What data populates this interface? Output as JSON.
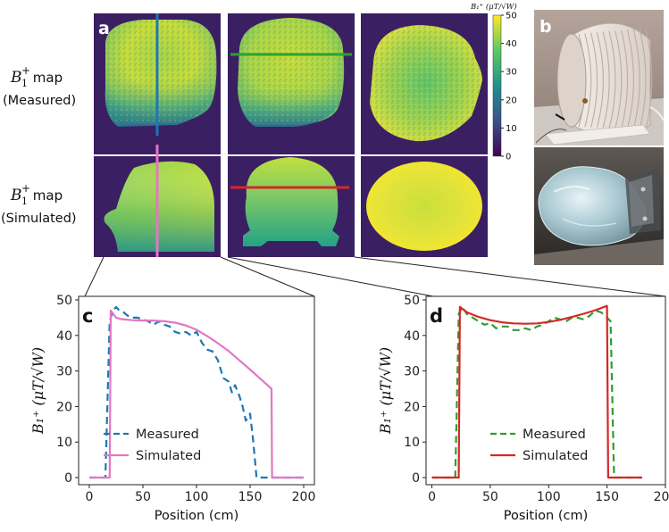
{
  "figure": {
    "panel_labels": {
      "a": "a",
      "b": "b",
      "c": "c",
      "d": "d"
    },
    "row_labels": [
      {
        "sym": "B",
        "sub": "1",
        "sup": "+",
        "word": " map",
        "kind": "(Measured)"
      },
      {
        "sym": "B",
        "sub": "1",
        "sup": "+",
        "word": " map",
        "kind": "(Simulated)"
      }
    ],
    "colorbar": {
      "title": "B₁⁺ (μT/√W)",
      "ticks": [
        "50",
        "40",
        "30",
        "20",
        "10",
        "0"
      ],
      "tick_values": [
        50,
        40,
        30,
        20,
        10,
        0
      ],
      "min": 0,
      "max": 50,
      "colors": [
        "#440154",
        "#3b528b",
        "#21908d",
        "#5dc963",
        "#fde725"
      ]
    },
    "line_colors": {
      "blue": "#1f77b4",
      "green": "#2ca02c",
      "pink": "#e377c2",
      "red": "#d62728"
    },
    "map_bg": "#3b1f63",
    "photo": {
      "tube_color": "#e9e2dc",
      "bg_top": "#a7978f",
      "bg_bottom": "#3c3733",
      "phantom_color": "#b7d3dc"
    }
  },
  "chart_data": [
    {
      "id": "c",
      "type": "line",
      "title": "",
      "xlabel": "Position (cm)",
      "ylabel": "B₁⁺ (μT/√W)",
      "xlim": [
        -10,
        210
      ],
      "ylim": [
        -2,
        51
      ],
      "xticks": [
        0,
        50,
        100,
        150,
        200
      ],
      "xtick_labels": [
        "0",
        "50",
        "100",
        "150",
        "200"
      ],
      "yticks": [
        0,
        10,
        20,
        30,
        40,
        50
      ],
      "ytick_labels": [
        "0",
        "10",
        "20",
        "30",
        "40",
        "50"
      ],
      "legend": "lower-left",
      "series": [
        {
          "name": "Measured",
          "color": "#1f77b4",
          "dash": "8,5",
          "x": [
            0,
            15,
            19,
            22,
            25,
            28,
            32,
            36,
            40,
            45,
            50,
            55,
            60,
            65,
            70,
            75,
            80,
            85,
            90,
            95,
            100,
            105,
            110,
            115,
            120,
            125,
            130,
            133,
            136,
            140,
            143,
            146,
            150,
            153,
            156,
            160,
            170,
            200
          ],
          "y": [
            0,
            0,
            44,
            47,
            48,
            47,
            46.5,
            45.5,
            45,
            45,
            44.5,
            44,
            43,
            44,
            43,
            42.5,
            41,
            40.5,
            41,
            40,
            41,
            38,
            36,
            35.5,
            33,
            28,
            27,
            24,
            26,
            23,
            20,
            16,
            18,
            10,
            0,
            0,
            0,
            0
          ]
        },
        {
          "name": "Simulated",
          "color": "#e377c2",
          "dash": "",
          "x": [
            0,
            19,
            20,
            25,
            30,
            40,
            50,
            60,
            70,
            80,
            90,
            100,
            110,
            120,
            130,
            140,
            150,
            160,
            170,
            170.5,
            200
          ],
          "y": [
            0,
            0,
            47,
            45,
            44.6,
            44.3,
            44.2,
            44.2,
            44,
            43.6,
            42.8,
            41.6,
            39.8,
            37.8,
            35.6,
            33,
            30.4,
            27.7,
            25,
            0,
            0
          ]
        }
      ]
    },
    {
      "id": "d",
      "type": "line",
      "title": "",
      "xlabel": "Position (cm)",
      "ylabel": "B₁⁺ (μT/√W)",
      "xlim": [
        -5,
        200
      ],
      "ylim": [
        -2,
        51
      ],
      "xticks": [
        0,
        50,
        100,
        150,
        200
      ],
      "xtick_labels": [
        "0",
        "50",
        "100",
        "150",
        "200"
      ],
      "yticks": [
        0,
        10,
        20,
        30,
        40,
        50
      ],
      "ytick_labels": [
        "0",
        "10",
        "20",
        "30",
        "40",
        "50"
      ],
      "legend": "lower-center",
      "series": [
        {
          "name": "Measured",
          "color": "#2ca02c",
          "dash": "8,5",
          "x": [
            0,
            20,
            23,
            26,
            30,
            35,
            40,
            45,
            50,
            55,
            60,
            65,
            70,
            75,
            80,
            85,
            90,
            95,
            100,
            105,
            110,
            115,
            120,
            125,
            130,
            135,
            140,
            145,
            150,
            153,
            156,
            160,
            180
          ],
          "y": [
            0,
            0,
            46,
            48,
            46,
            45,
            44,
            43,
            43.5,
            42,
            42.5,
            42.5,
            41.5,
            41.5,
            42,
            41.5,
            42.5,
            43,
            44,
            45,
            44.5,
            44,
            45,
            45,
            44.5,
            45.5,
            47,
            46.5,
            45,
            44,
            0,
            0,
            0
          ]
        },
        {
          "name": "Simulated",
          "color": "#d62728",
          "dash": "",
          "x": [
            0,
            23,
            24,
            30,
            40,
            50,
            60,
            70,
            80,
            90,
            100,
            110,
            120,
            130,
            140,
            150,
            151,
            180
          ],
          "y": [
            0,
            0,
            48,
            46.5,
            45.2,
            44.3,
            43.7,
            43.4,
            43.3,
            43.4,
            43.8,
            44.4,
            45.2,
            46.1,
            47.1,
            48.3,
            0,
            0
          ]
        }
      ]
    }
  ]
}
